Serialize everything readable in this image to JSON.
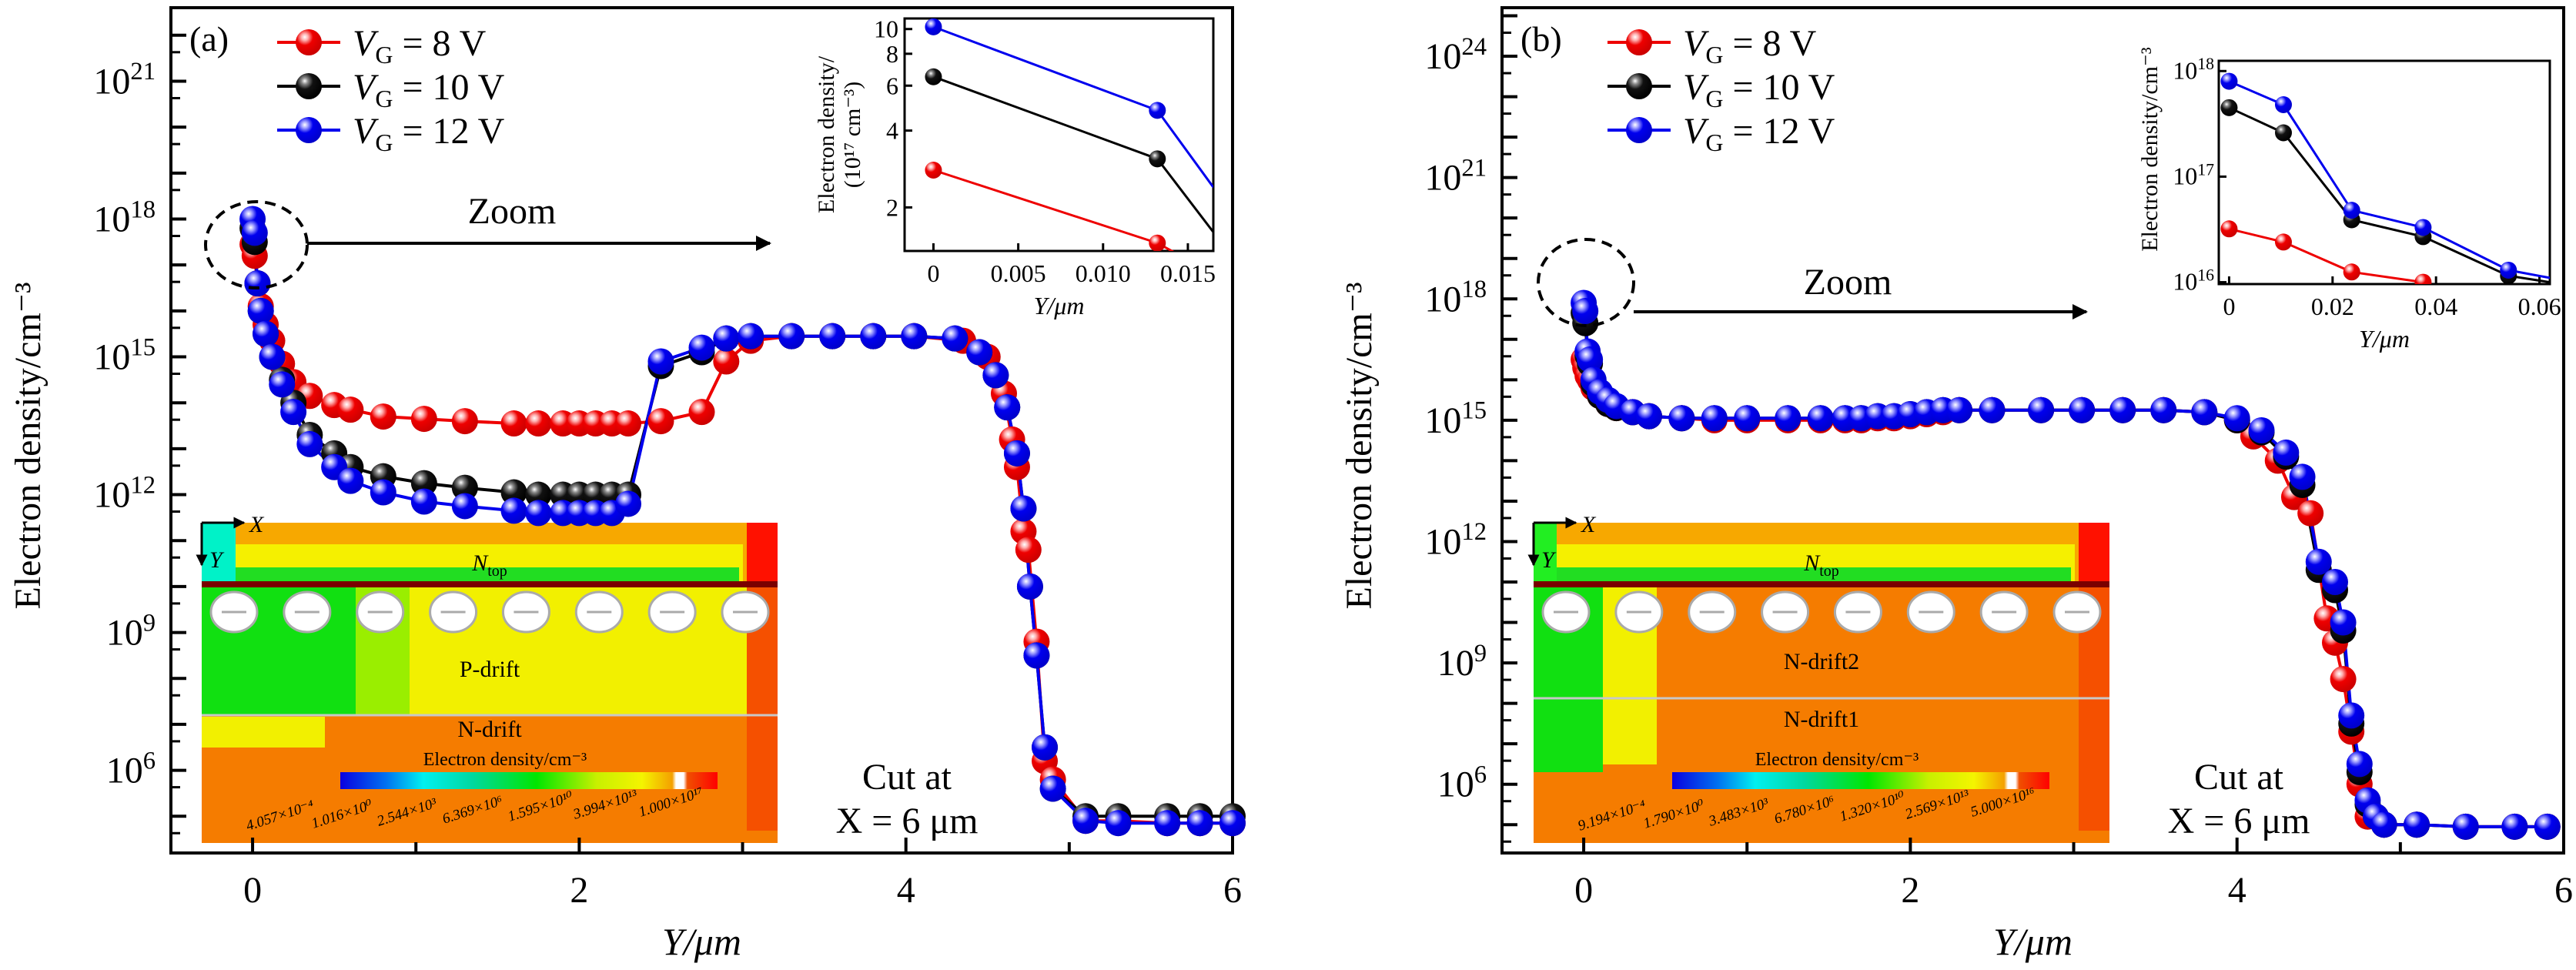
{
  "figure": {
    "panels": [
      "(a)",
      "(b)"
    ],
    "zoom_label": "Zoom",
    "cut_label_line1": "Cut at",
    "cut_label_line2": "X = 6 μm"
  },
  "chart_data": [
    {
      "id": "a",
      "type": "line",
      "panel_label": "(a)",
      "title": "",
      "xlabel": "Y/μm",
      "ylabel": "Electron density/cm⁻³",
      "xlim": [
        -0.5,
        6
      ],
      "ylim_log10": [
        4.2,
        22.6
      ],
      "yscale": "log",
      "xticks": [
        0,
        2,
        4,
        6
      ],
      "xtick_labels": [
        "0",
        "2",
        "4",
        "6"
      ],
      "yticks_log10": [
        6,
        9,
        12,
        15,
        18,
        21
      ],
      "ytick_labels": [
        "10^6",
        "10^9",
        "10^12",
        "10^15",
        "10^18",
        "10^21"
      ],
      "legend": {
        "placement": "top-left",
        "entries": [
          "VG = 8 V",
          "VG = 10 V",
          "VG = 12 V"
        ]
      },
      "annotations": [
        "Zoom",
        "Cut at",
        "X = 6 μm"
      ],
      "series": [
        {
          "name": "VG = 8 V",
          "color": "#ee0000",
          "x": [
            0.0,
            0.013,
            0.03,
            0.05,
            0.08,
            0.12,
            0.18,
            0.25,
            0.35,
            0.5,
            0.6,
            0.8,
            1.05,
            1.3,
            1.6,
            1.75,
            1.9,
            2.0,
            2.1,
            2.2,
            2.3,
            2.5,
            2.75,
            2.9,
            3.05,
            3.3,
            3.55,
            3.8,
            4.05,
            4.35,
            4.5,
            4.6,
            4.65,
            4.68,
            4.72,
            4.75,
            4.8,
            4.85,
            4.9,
            5.1,
            5.3,
            5.6,
            5.8,
            6.0
          ],
          "log10_y": [
            17.45,
            17.2,
            16.6,
            16.1,
            15.7,
            15.35,
            14.85,
            14.45,
            14.15,
            13.95,
            13.85,
            13.7,
            13.65,
            13.6,
            13.55,
            13.55,
            13.55,
            13.55,
            13.55,
            13.55,
            13.55,
            13.6,
            13.8,
            14.9,
            15.35,
            15.45,
            15.45,
            15.45,
            15.45,
            15.35,
            15.0,
            14.2,
            13.2,
            12.6,
            11.2,
            10.8,
            8.8,
            6.2,
            5.8,
            4.9,
            4.9,
            4.85,
            4.85,
            4.85
          ]
        },
        {
          "name": "VG = 10 V",
          "color": "#000000",
          "x": [
            0.0,
            0.013,
            0.03,
            0.05,
            0.08,
            0.12,
            0.18,
            0.25,
            0.35,
            0.5,
            0.6,
            0.8,
            1.05,
            1.3,
            1.6,
            1.75,
            1.9,
            2.0,
            2.1,
            2.2,
            2.3,
            2.5,
            2.75,
            2.9,
            3.05,
            3.3,
            3.55,
            3.8,
            4.05,
            4.3,
            4.45,
            4.55,
            4.62,
            4.68,
            4.72,
            4.76,
            4.8,
            4.85,
            4.9,
            5.1,
            5.3,
            5.6,
            5.8,
            6.0
          ],
          "log10_y": [
            17.8,
            17.5,
            16.6,
            16.0,
            15.5,
            15.0,
            14.5,
            14.0,
            13.3,
            12.9,
            12.6,
            12.4,
            12.25,
            12.15,
            12.05,
            12.0,
            12.0,
            12.0,
            12.0,
            12.0,
            12.0,
            14.8,
            15.1,
            15.4,
            15.45,
            15.45,
            15.45,
            15.45,
            15.45,
            15.4,
            15.1,
            14.6,
            13.9,
            12.9,
            11.7,
            10.0,
            8.5,
            6.5,
            5.6,
            5.0,
            5.0,
            5.0,
            5.0,
            5.0
          ]
        },
        {
          "name": "VG = 12 V",
          "color": "#0000ee",
          "x": [
            0.0,
            0.013,
            0.03,
            0.05,
            0.08,
            0.12,
            0.18,
            0.25,
            0.35,
            0.5,
            0.6,
            0.8,
            1.05,
            1.3,
            1.6,
            1.75,
            1.9,
            2.0,
            2.1,
            2.2,
            2.3,
            2.5,
            2.75,
            2.9,
            3.05,
            3.3,
            3.55,
            3.8,
            4.05,
            4.3,
            4.45,
            4.55,
            4.62,
            4.68,
            4.72,
            4.76,
            4.8,
            4.85,
            4.9,
            5.1,
            5.3,
            5.6,
            5.8,
            6.0
          ],
          "log10_y": [
            18.0,
            17.7,
            16.6,
            16.0,
            15.5,
            15.0,
            14.4,
            13.8,
            13.1,
            12.6,
            12.3,
            12.05,
            11.85,
            11.75,
            11.65,
            11.6,
            11.6,
            11.6,
            11.6,
            11.6,
            11.8,
            14.9,
            15.2,
            15.4,
            15.45,
            15.45,
            15.45,
            15.45,
            15.45,
            15.4,
            15.1,
            14.6,
            13.9,
            12.9,
            11.7,
            10.0,
            8.5,
            6.5,
            5.6,
            4.9,
            4.85,
            4.85,
            4.85,
            4.85
          ]
        }
      ],
      "inset": {
        "type": "line",
        "xlabel": "Y/μm",
        "ylabel_line1": "Electron density/",
        "ylabel_line2": "(10¹⁷ cm⁻³)",
        "xlim": [
          -0.0017,
          0.0165
        ],
        "ylim": [
          1.35,
          11
        ],
        "yscale": "log",
        "xticks": [
          0,
          0.005,
          0.01,
          0.015
        ],
        "xtick_labels": [
          "0",
          "0.005",
          "0.010",
          "0.015"
        ],
        "yticks": [
          2,
          4,
          6,
          8,
          10
        ],
        "ytick_labels": [
          "2",
          "4",
          "6",
          "8",
          "10"
        ],
        "series": [
          {
            "name": "VG = 8 V",
            "color": "#ee0000",
            "x": [
              0,
              0.0132,
              0.0165
            ],
            "y": [
              2.8,
              1.45,
              1.1
            ]
          },
          {
            "name": "VG = 10 V",
            "color": "#000000",
            "x": [
              0,
              0.0132,
              0.0165
            ],
            "y": [
              6.5,
              3.1,
              1.6
            ]
          },
          {
            "name": "VG = 12 V",
            "color": "#0000ee",
            "x": [
              0,
              0.0132,
              0.0165
            ],
            "y": [
              10.2,
              4.8,
              2.4
            ]
          }
        ]
      },
      "device_inset": {
        "regions": [
          "N_top",
          "P-drift",
          "N-drift"
        ],
        "axis_x": "X",
        "axis_y": "Y",
        "colorbar_title": "Electron density/cm⁻³",
        "colorbar_labels": [
          "4.057×10⁻⁴",
          "1.016×10⁰",
          "2.544×10³",
          "6.369×10⁶",
          "1.595×10¹⁰",
          "3.994×10¹³",
          "1.000×10¹⁷"
        ],
        "trench_count": 8
      }
    },
    {
      "id": "b",
      "type": "line",
      "panel_label": "(b)",
      "title": "",
      "xlabel": "Y/μm",
      "ylabel": "Electron density/cm⁻³",
      "xlim": [
        -0.5,
        6
      ],
      "ylim_log10": [
        4.3,
        25.2
      ],
      "yscale": "log",
      "xticks": [
        0,
        2,
        4,
        6
      ],
      "xtick_labels": [
        "0",
        "2",
        "4",
        "6"
      ],
      "yticks_log10": [
        6,
        9,
        12,
        15,
        18,
        21,
        24
      ],
      "ytick_labels": [
        "10^6",
        "10^9",
        "10^12",
        "10^15",
        "10^18",
        "10^21",
        "10^24"
      ],
      "legend": {
        "placement": "top-left",
        "entries": [
          "VG = 8 V",
          "VG = 10 V",
          "VG = 12 V"
        ]
      },
      "annotations": [
        "Zoom",
        "Cut at",
        "X = 6 μm"
      ],
      "series": [
        {
          "name": "VG = 8 V",
          "color": "#ee0000",
          "x": [
            0.0,
            0.01,
            0.024,
            0.038,
            0.06,
            0.1,
            0.15,
            0.2,
            0.3,
            0.4,
            0.6,
            0.8,
            1.0,
            1.25,
            1.45,
            1.6,
            1.7,
            1.8,
            1.9,
            2.0,
            2.1,
            2.2,
            2.3,
            2.5,
            2.8,
            3.05,
            3.3,
            3.55,
            3.8,
            4.0,
            4.1,
            4.25,
            4.35,
            4.45,
            4.55,
            4.6,
            4.65,
            4.7,
            4.75,
            4.8,
            4.9,
            5.1,
            5.4,
            5.7,
            5.9
          ],
          "log10_y": [
            16.5,
            16.3,
            16.1,
            16.0,
            15.8,
            15.6,
            15.4,
            15.3,
            15.2,
            15.1,
            15.05,
            15.0,
            15.0,
            15.0,
            15.0,
            15.0,
            15.0,
            15.05,
            15.05,
            15.1,
            15.15,
            15.2,
            15.25,
            15.25,
            15.25,
            15.25,
            15.25,
            15.25,
            15.2,
            15.0,
            14.6,
            14.0,
            13.1,
            12.7,
            10.1,
            9.5,
            8.6,
            7.3,
            6.0,
            5.2,
            5.0,
            5.0,
            4.95,
            4.95,
            4.95
          ]
        },
        {
          "name": "VG = 10 V",
          "color": "#000000",
          "x": [
            0.0,
            0.01,
            0.024,
            0.038,
            0.06,
            0.1,
            0.15,
            0.2,
            0.3,
            0.4,
            0.6,
            0.8,
            1.0,
            1.25,
            1.45,
            1.6,
            1.7,
            1.8,
            1.9,
            2.0,
            2.1,
            2.2,
            2.3,
            2.5,
            2.8,
            3.05,
            3.3,
            3.55,
            3.8,
            4.0,
            4.15,
            4.3,
            4.4,
            4.5,
            4.6,
            4.65,
            4.7,
            4.75,
            4.8,
            4.85,
            4.9,
            5.1,
            5.4,
            5.7,
            5.9
          ],
          "log10_y": [
            17.65,
            17.4,
            16.6,
            16.4,
            15.9,
            15.6,
            15.4,
            15.3,
            15.2,
            15.1,
            15.05,
            15.05,
            15.05,
            15.05,
            15.05,
            15.05,
            15.05,
            15.1,
            15.1,
            15.15,
            15.2,
            15.25,
            15.25,
            15.25,
            15.25,
            15.25,
            15.25,
            15.25,
            15.2,
            15.0,
            14.7,
            14.1,
            13.4,
            11.3,
            10.8,
            9.8,
            7.5,
            6.3,
            5.5,
            5.2,
            5.0,
            5.0,
            4.95,
            4.95,
            4.95
          ]
        },
        {
          "name": "VG = 12 V",
          "color": "#0000ee",
          "x": [
            0.0,
            0.01,
            0.024,
            0.038,
            0.06,
            0.1,
            0.15,
            0.2,
            0.3,
            0.4,
            0.6,
            0.8,
            1.0,
            1.25,
            1.45,
            1.6,
            1.7,
            1.8,
            1.9,
            2.0,
            2.1,
            2.2,
            2.3,
            2.5,
            2.8,
            3.05,
            3.3,
            3.55,
            3.8,
            4.0,
            4.15,
            4.3,
            4.4,
            4.5,
            4.6,
            4.65,
            4.7,
            4.75,
            4.8,
            4.85,
            4.9,
            5.1,
            5.4,
            5.7,
            5.9
          ],
          "log10_y": [
            17.9,
            17.7,
            16.7,
            16.5,
            16.0,
            15.7,
            15.5,
            15.35,
            15.2,
            15.1,
            15.05,
            15.05,
            15.05,
            15.05,
            15.05,
            15.05,
            15.05,
            15.1,
            15.1,
            15.15,
            15.2,
            15.25,
            15.25,
            15.25,
            15.25,
            15.25,
            15.25,
            15.25,
            15.2,
            15.05,
            14.75,
            14.2,
            13.6,
            11.5,
            11.0,
            10.0,
            7.7,
            6.5,
            5.6,
            5.2,
            5.0,
            5.0,
            4.95,
            4.95,
            4.95
          ]
        }
      ],
      "inset": {
        "type": "line",
        "xlabel": "Y/μm",
        "ylabel_line1": "Electron density/cm⁻³",
        "ylabel_line2": "",
        "xlim": [
          -0.002,
          0.062
        ],
        "ylim": [
          9600000000000000.0,
          1.25e+18
        ],
        "yscale": "log",
        "xticks": [
          0,
          0.02,
          0.04,
          0.06
        ],
        "xtick_labels": [
          "0",
          "0.02",
          "0.04",
          "0.06"
        ],
        "yticks": [
          1e+16,
          1e+17,
          1e+18
        ],
        "ytick_labels": [
          "10^16",
          "10^17",
          "10^18"
        ],
        "series": [
          {
            "name": "VG = 8 V",
            "color": "#ee0000",
            "x": [
              0,
              0.0105,
              0.0237,
              0.0375
            ],
            "y": [
              3.2e+16,
              2.4e+16,
              1.25e+16,
              1e+16
            ]
          },
          {
            "name": "VG = 10 V",
            "color": "#000000",
            "x": [
              0,
              0.0105,
              0.0237,
              0.0375,
              0.054,
              0.062
            ],
            "y": [
              4.5e+17,
              2.6e+17,
              3.9e+16,
              2.7e+16,
              1.15e+16,
              1e+16
            ]
          },
          {
            "name": "VG = 12 V",
            "color": "#0000ee",
            "x": [
              0,
              0.0105,
              0.0237,
              0.0375,
              0.054,
              0.062
            ],
            "y": [
              8e+17,
              4.8e+17,
              4.8e+16,
              3.3e+16,
              1.3e+16,
              1.1e+16
            ]
          }
        ]
      },
      "device_inset": {
        "regions": [
          "N_top",
          "N-drift2",
          "N-drift1"
        ],
        "axis_x": "X",
        "axis_y": "Y",
        "colorbar_title": "Electron density/cm⁻³",
        "colorbar_labels": [
          "9.194×10⁻⁴",
          "1.790×10⁰",
          "3.483×10³",
          "6.780×10⁶",
          "1.320×10¹⁰",
          "2.569×10¹³",
          "5.000×10¹⁶"
        ],
        "trench_count": 8
      }
    }
  ]
}
